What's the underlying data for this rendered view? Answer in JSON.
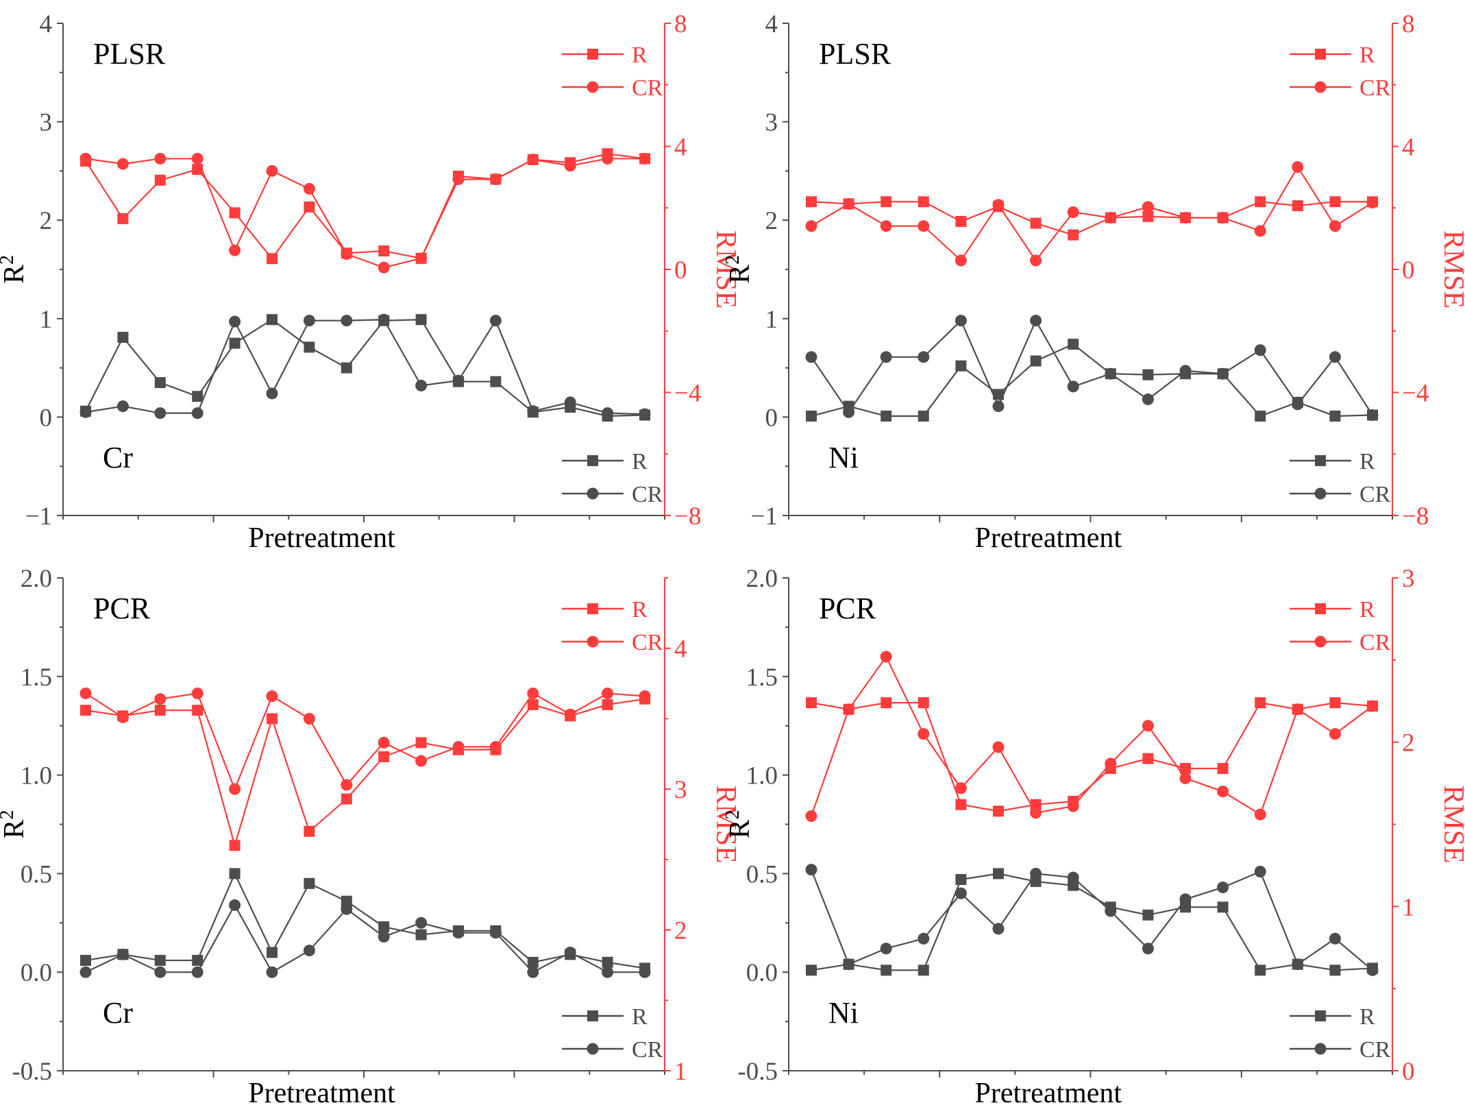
{
  "colors": {
    "left": "#4d4d4d",
    "right": "#ff3c3c"
  },
  "chart_data": [
    {
      "type": "line",
      "title": "PLSR",
      "element": "Cr",
      "xlabel": "Pretreatment",
      "ylabel_left": "R",
      "ylabel_left_sup": "2",
      "ylabel_right": "RMSE",
      "ylim_left": [
        -1,
        4
      ],
      "ylim_right": [
        -8,
        8
      ],
      "yticks_left": [
        "−1",
        "0",
        "1",
        "2",
        "3",
        "4"
      ],
      "yticks_right": [
        "−8",
        "−4",
        "0",
        "4",
        "8"
      ],
      "x": [
        1,
        2,
        3,
        4,
        5,
        6,
        7,
        8,
        9,
        10,
        11,
        12,
        13,
        14,
        15,
        16
      ],
      "legend_right": [
        "R",
        "CR"
      ],
      "legend_left": [
        "R",
        "CR"
      ],
      "series": [
        {
          "name": "R",
          "axis": "right",
          "marker": "square",
          "values": [
            3.52,
            1.65,
            2.9,
            3.25,
            1.84,
            0.35,
            2.03,
            0.53,
            0.6,
            0.36,
            3.03,
            2.93,
            3.57,
            3.47,
            3.76,
            3.6
          ]
        },
        {
          "name": "CR",
          "axis": "right",
          "marker": "circle",
          "values": [
            3.6,
            3.43,
            3.6,
            3.6,
            0.62,
            3.2,
            2.62,
            0.5,
            0.06,
            0.36,
            2.93,
            2.93,
            3.57,
            3.37,
            3.6,
            3.6
          ]
        },
        {
          "name": "R",
          "axis": "left",
          "marker": "square",
          "values": [
            0.06,
            0.81,
            0.35,
            0.21,
            0.75,
            0.99,
            0.71,
            0.5,
            0.98,
            0.99,
            0.36,
            0.36,
            0.05,
            0.1,
            0.01,
            0.02
          ]
        },
        {
          "name": "CR",
          "axis": "left",
          "marker": "circle",
          "values": [
            0.05,
            0.11,
            0.04,
            0.04,
            0.97,
            0.24,
            0.98,
            0.98,
            0.99,
            0.32,
            0.37,
            0.98,
            0.06,
            0.15,
            0.04,
            0.03
          ]
        }
      ]
    },
    {
      "type": "line",
      "title": "PLSR",
      "element": "Ni",
      "xlabel": "Pretreatment",
      "ylabel_left": "R",
      "ylabel_left_sup": "2",
      "ylabel_right": "RMSE",
      "ylim_left": [
        -1,
        4
      ],
      "ylim_right": [
        -8,
        8
      ],
      "yticks_left": [
        "−1",
        "0",
        "1",
        "2",
        "3",
        "4"
      ],
      "yticks_right": [
        "−8",
        "−4",
        "0",
        "4",
        "8"
      ],
      "x": [
        1,
        2,
        3,
        4,
        5,
        6,
        7,
        8,
        9,
        10,
        11,
        12,
        13,
        14,
        15,
        16
      ],
      "legend_right": [
        "R",
        "CR"
      ],
      "legend_left": [
        "R",
        "CR"
      ],
      "series": [
        {
          "name": "R",
          "axis": "right",
          "marker": "square",
          "values": [
            2.2,
            2.13,
            2.2,
            2.2,
            1.56,
            2.04,
            1.5,
            1.12,
            1.68,
            1.72,
            1.68,
            1.68,
            2.2,
            2.07,
            2.2,
            2.2
          ]
        },
        {
          "name": "CR",
          "axis": "right",
          "marker": "circle",
          "values": [
            1.41,
            2.13,
            1.41,
            1.41,
            0.29,
            2.1,
            0.29,
            1.86,
            1.68,
            2.03,
            1.68,
            1.68,
            1.25,
            3.33,
            1.41,
            2.17
          ]
        },
        {
          "name": "R",
          "axis": "left",
          "marker": "square",
          "values": [
            0.01,
            0.11,
            0.01,
            0.01,
            0.52,
            0.23,
            0.57,
            0.74,
            0.44,
            0.43,
            0.44,
            0.44,
            0.01,
            0.15,
            0.01,
            0.02
          ]
        },
        {
          "name": "CR",
          "axis": "left",
          "marker": "circle",
          "values": [
            0.61,
            0.05,
            0.61,
            0.61,
            0.98,
            0.11,
            0.98,
            0.31,
            0.44,
            0.18,
            0.47,
            0.44,
            0.68,
            0.13,
            0.61,
            0.02
          ]
        }
      ]
    },
    {
      "type": "line",
      "title": "PCR",
      "element": "Cr",
      "xlabel": "Pretreatment",
      "ylabel_left": "R",
      "ylabel_left_sup": "2",
      "ylabel_right": "RMSE",
      "ylim_left": [
        -0.5,
        2.0
      ],
      "ylim_right": [
        1,
        4.5
      ],
      "yticks_left": [
        "-0.5",
        "0.0",
        "0.5",
        "1.0",
        "1.5",
        "2.0"
      ],
      "yticks_right": [
        "1",
        "2",
        "3",
        "4"
      ],
      "x": [
        1,
        2,
        3,
        4,
        5,
        6,
        7,
        8,
        9,
        10,
        11,
        12,
        13,
        14,
        15,
        16
      ],
      "legend_right": [
        "R",
        "CR"
      ],
      "legend_left": [
        "R",
        "CR"
      ],
      "series": [
        {
          "name": "R",
          "axis": "right",
          "marker": "square",
          "values": [
            3.56,
            3.52,
            3.56,
            3.56,
            2.6,
            3.5,
            2.7,
            2.93,
            3.23,
            3.33,
            3.28,
            3.28,
            3.6,
            3.52,
            3.6,
            3.64
          ]
        },
        {
          "name": "CR",
          "axis": "right",
          "marker": "circle",
          "values": [
            3.68,
            3.51,
            3.64,
            3.68,
            3.0,
            3.66,
            3.5,
            3.03,
            3.33,
            3.2,
            3.3,
            3.3,
            3.68,
            3.53,
            3.68,
            3.66
          ]
        },
        {
          "name": "R",
          "axis": "left",
          "marker": "square",
          "values": [
            0.06,
            0.09,
            0.06,
            0.06,
            0.5,
            0.1,
            0.45,
            0.36,
            0.23,
            0.19,
            0.21,
            0.21,
            0.05,
            0.09,
            0.05,
            0.02
          ]
        },
        {
          "name": "CR",
          "axis": "left",
          "marker": "circle",
          "values": [
            0.0,
            0.09,
            0.0,
            0.0,
            0.34,
            0.0,
            0.11,
            0.32,
            0.18,
            0.25,
            0.2,
            0.2,
            0.0,
            0.1,
            0.0,
            0.0
          ]
        }
      ]
    },
    {
      "type": "line",
      "title": "PCR",
      "element": "Ni",
      "xlabel": "Pretreatment",
      "ylabel_left": "R",
      "ylabel_left_sup": "2",
      "ylabel_right": "RMSE",
      "ylim_left": [
        -0.5,
        2.0
      ],
      "ylim_right": [
        0,
        3
      ],
      "yticks_left": [
        "-0.5",
        "0.0",
        "0.5",
        "1.0",
        "1.5",
        "2.0"
      ],
      "yticks_right": [
        "0",
        "1",
        "2",
        "3"
      ],
      "x": [
        1,
        2,
        3,
        4,
        5,
        6,
        7,
        8,
        9,
        10,
        11,
        12,
        13,
        14,
        15,
        16
      ],
      "legend_right": [
        "R",
        "CR"
      ],
      "legend_left": [
        "R",
        "CR"
      ],
      "series": [
        {
          "name": "R",
          "axis": "right",
          "marker": "square",
          "values": [
            2.24,
            2.2,
            2.24,
            2.24,
            1.62,
            1.58,
            1.62,
            1.64,
            1.84,
            1.9,
            1.84,
            1.84,
            2.24,
            2.2,
            2.24,
            2.22
          ]
        },
        {
          "name": "CR",
          "axis": "right",
          "marker": "circle",
          "values": [
            1.55,
            2.2,
            2.52,
            2.05,
            1.72,
            1.97,
            1.57,
            1.61,
            1.87,
            2.1,
            1.78,
            1.7,
            1.56,
            2.2,
            2.05,
            2.22
          ]
        },
        {
          "name": "R",
          "axis": "left",
          "marker": "square",
          "values": [
            0.01,
            0.04,
            0.01,
            0.01,
            0.47,
            0.5,
            0.46,
            0.44,
            0.33,
            0.29,
            0.33,
            0.33,
            0.01,
            0.04,
            0.01,
            0.02
          ]
        },
        {
          "name": "CR",
          "axis": "left",
          "marker": "circle",
          "values": [
            0.52,
            0.04,
            0.12,
            0.17,
            0.4,
            0.22,
            0.5,
            0.48,
            0.31,
            0.12,
            0.37,
            0.43,
            0.51,
            0.04,
            0.17,
            0.01
          ]
        }
      ]
    }
  ]
}
